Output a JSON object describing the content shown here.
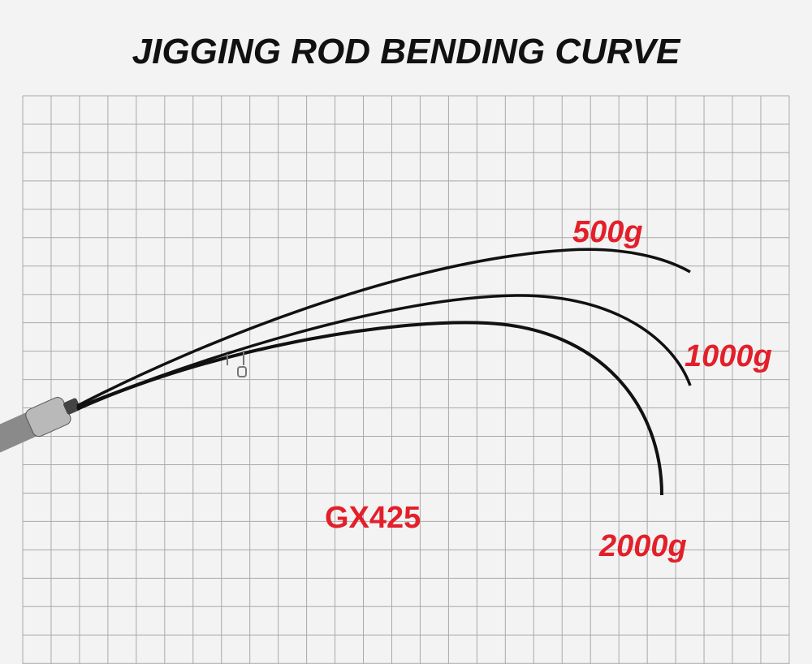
{
  "title": "JIGGING ROD BENDING CURVE",
  "curves": [
    {
      "label": "500g"
    },
    {
      "label": "1000g"
    },
    {
      "label": "2000g"
    }
  ],
  "model": "GX425"
}
